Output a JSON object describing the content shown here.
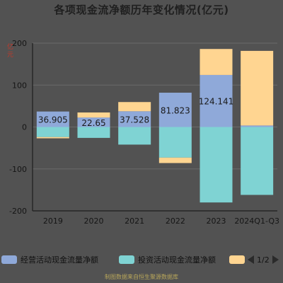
{
  "title": "各项现金流净额历年变化情况(亿元)",
  "unit_label": "亿元",
  "source": "制图数据来自恒生聚源数据库",
  "legend": {
    "items": [
      {
        "label": "经营活动现金流量净额",
        "color": "#8fa9d9"
      },
      {
        "label": "投资活动现金流量净额",
        "color": "#7fd3d3"
      },
      {
        "label": "",
        "color": "#ffd591"
      }
    ],
    "page": "1/2"
  },
  "chart_data": {
    "type": "bar",
    "stacked": true,
    "title": "各项现金流净额历年变化情况(亿元)",
    "ylabel": "亿元",
    "ylim": [
      -200,
      200
    ],
    "yticks": [
      -200,
      -100,
      0,
      100,
      200
    ],
    "categories": [
      "2019",
      "2020",
      "2021",
      "2022",
      "2023",
      "2024Q1-Q3"
    ],
    "series": [
      {
        "name": "经营活动现金流量净额",
        "color": "#8fa9d9",
        "values": [
          36.905,
          22.65,
          37.528,
          81.823,
          124.141,
          3.6
        ],
        "labels": [
          "36.905",
          "22.65",
          "37.528",
          "81.823",
          "124.141",
          null
        ]
      },
      {
        "name": "投资活动现金流量净额",
        "color": "#7fd3d3",
        "values": [
          -24,
          -26,
          -42,
          -73,
          -180,
          -162
        ]
      },
      {
        "color": "#ffd591",
        "values": [
          -3,
          12,
          22,
          -13,
          62,
          178
        ]
      }
    ]
  }
}
